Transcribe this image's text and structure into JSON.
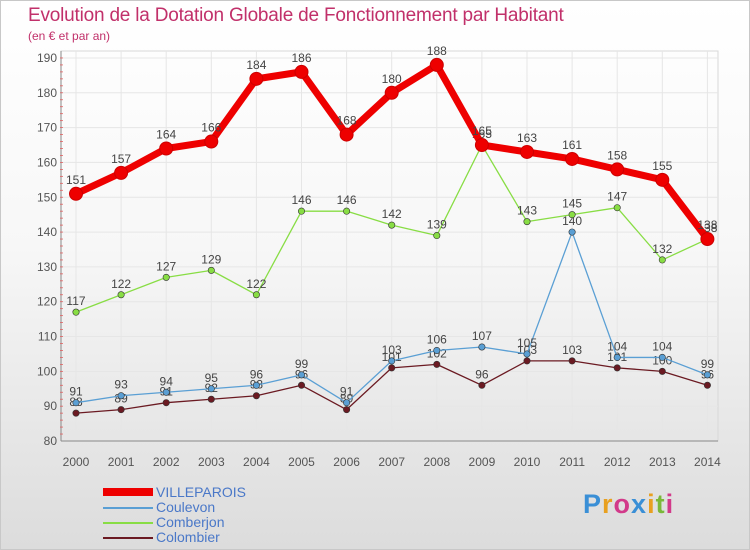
{
  "title": "Evolution de la Dotation Globale de Fonctionnement par Habitant",
  "subtitle": "(en € et par an)",
  "brand": {
    "letters": [
      "P",
      "r",
      "o",
      "x",
      "i",
      "t",
      "i"
    ],
    "colors": [
      "#3a8fd6",
      "#e8a020",
      "#d23a8a",
      "#3a8fd6",
      "#e8a020",
      "#7ab83a",
      "#d23a8a"
    ]
  },
  "colors": {
    "title": "#c1306a",
    "axis": "#555555",
    "grid": "#e6e6e6",
    "legend_text": "#4a78c8"
  },
  "chart_data": {
    "type": "line",
    "title": "Evolution de la Dotation Globale de Fonctionnement par Habitant",
    "subtitle": "(en € et par an)",
    "xlabel": "",
    "ylabel": "",
    "x": [
      "2000",
      "2001",
      "2002",
      "2003",
      "2004",
      "2005",
      "2006",
      "2007",
      "2008",
      "2009",
      "2010",
      "2011",
      "2012",
      "2013",
      "2014"
    ],
    "ylim": [
      80,
      192
    ],
    "yticks": [
      80,
      90,
      100,
      110,
      120,
      130,
      140,
      150,
      160,
      170,
      180,
      190
    ],
    "grid": true,
    "legend_position": "bottom-left",
    "series": [
      {
        "name": "Colombier",
        "color": "#6b1a22",
        "values": [
          88,
          89,
          91,
          92,
          93,
          96,
          89,
          101,
          102,
          96,
          103,
          103,
          101,
          100,
          96
        ]
      },
      {
        "name": "Coulevon",
        "color": "#5a9fd4",
        "values": [
          91,
          93,
          94,
          95,
          96,
          99,
          91,
          103,
          106,
          107,
          105,
          140,
          104,
          104,
          99
        ]
      },
      {
        "name": "Comberjon",
        "color": "#88dd44",
        "values": [
          117,
          122,
          127,
          129,
          122,
          146,
          146,
          142,
          139,
          165,
          143,
          145,
          147,
          132,
          138
        ]
      },
      {
        "name": "VILLEPAROIS",
        "color": "#ee0000",
        "values": [
          151,
          157,
          164,
          166,
          184,
          186,
          168,
          180,
          188,
          165,
          163,
          161,
          158,
          155,
          138
        ]
      }
    ],
    "legend": [
      "VILLEPAROIS",
      "Coulevon",
      "Comberjon",
      "Colombier"
    ]
  }
}
